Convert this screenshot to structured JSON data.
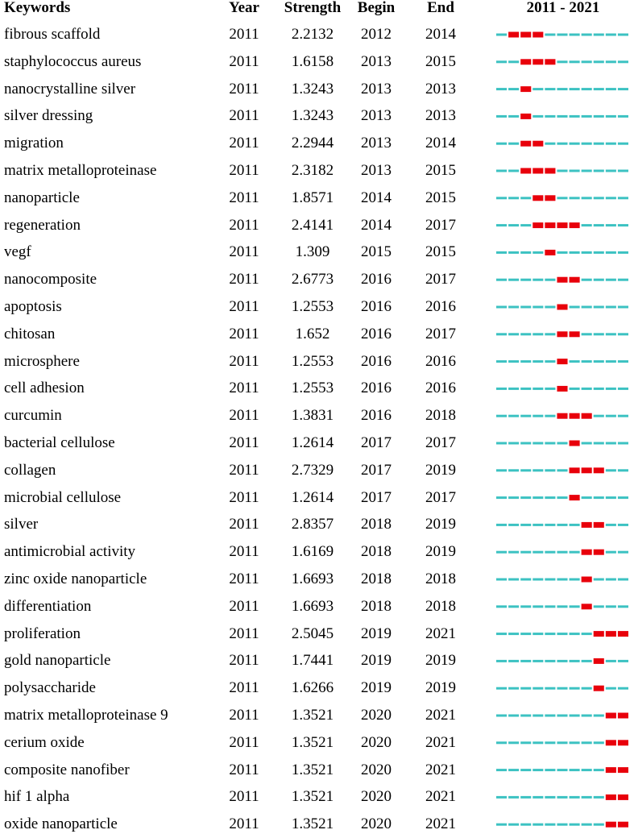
{
  "table": {
    "header": [
      "Keywords",
      "Year",
      "Strength",
      "Begin",
      "End",
      "2011 - 2021"
    ],
    "rows": [
      [
        "fibrous scaffold",
        "2011",
        "2.2132",
        "2012",
        "2014"
      ],
      [
        "staphylococcus aureus",
        "2011",
        "1.6158",
        "2013",
        "2015"
      ],
      [
        "nanocrystalline silver",
        "2011",
        "1.3243",
        "2013",
        "2013"
      ],
      [
        "silver dressing",
        "2011",
        "1.3243",
        "2013",
        "2013"
      ],
      [
        "migration",
        "2011",
        "2.2944",
        "2013",
        "2014"
      ],
      [
        "matrix metalloproteinase",
        "2011",
        "2.3182",
        "2013",
        "2015"
      ],
      [
        "nanoparticle",
        "2011",
        "1.8571",
        "2014",
        "2015"
      ],
      [
        "regeneration",
        "2011",
        "2.4141",
        "2014",
        "2017"
      ],
      [
        "vegf",
        "2011",
        "1.309",
        "2015",
        "2015"
      ],
      [
        "nanocomposite",
        "2011",
        "2.6773",
        "2016",
        "2017"
      ],
      [
        "apoptosis",
        "2011",
        "1.2553",
        "2016",
        "2016"
      ],
      [
        "chitosan",
        "2011",
        "1.652",
        "2016",
        "2017"
      ],
      [
        "microsphere",
        "2011",
        "1.2553",
        "2016",
        "2016"
      ],
      [
        "cell adhesion",
        "2011",
        "1.2553",
        "2016",
        "2016"
      ],
      [
        "curcumin",
        "2011",
        "1.3831",
        "2016",
        "2018"
      ],
      [
        "bacterial cellulose",
        "2011",
        "1.2614",
        "2017",
        "2017"
      ],
      [
        "collagen",
        "2011",
        "2.7329",
        "2017",
        "2019"
      ],
      [
        "microbial cellulose",
        "2011",
        "1.2614",
        "2017",
        "2017"
      ],
      [
        "silver",
        "2011",
        "2.8357",
        "2018",
        "2019"
      ],
      [
        "antimicrobial activity",
        "2011",
        "1.6169",
        "2018",
        "2019"
      ],
      [
        "zinc oxide nanoparticle",
        "2011",
        "1.6693",
        "2018",
        "2018"
      ],
      [
        "differentiation",
        "2011",
        "1.6693",
        "2018",
        "2018"
      ],
      [
        "proliferation",
        "2011",
        "2.5045",
        "2019",
        "2021"
      ],
      [
        "gold nanoparticle",
        "2011",
        "1.7441",
        "2019",
        "2019"
      ],
      [
        "polysaccharide",
        "2011",
        "1.6266",
        "2019",
        "2019"
      ],
      [
        "matrix metalloproteinase 9",
        "2011",
        "1.3521",
        "2020",
        "2021"
      ],
      [
        "cerium oxide",
        "2011",
        "1.3521",
        "2020",
        "2021"
      ],
      [
        "composite nanofiber",
        "2011",
        "1.3521",
        "2020",
        "2021"
      ],
      [
        "hif 1 alpha",
        "2011",
        "1.3521",
        "2020",
        "2021"
      ],
      [
        "oxide nanoparticle",
        "2011",
        "1.3521",
        "2020",
        "2021"
      ]
    ]
  }
}
